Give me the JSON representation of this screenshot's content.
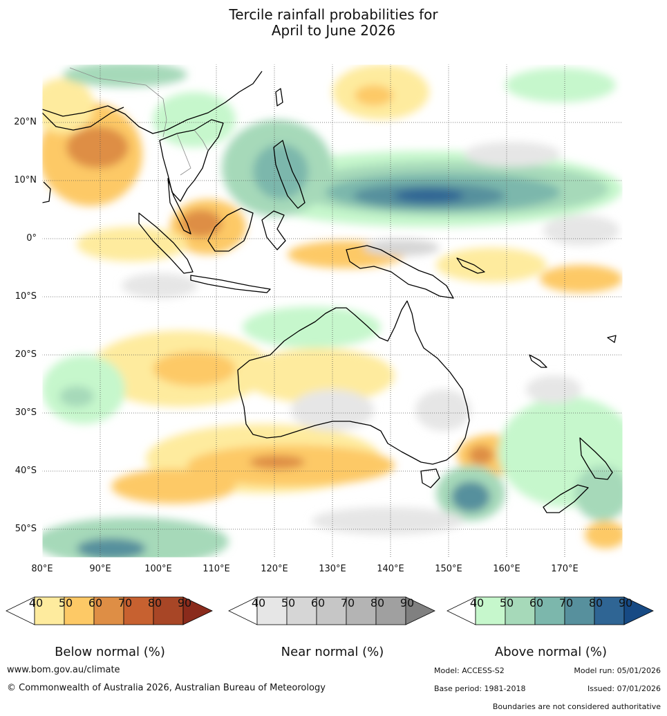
{
  "title": {
    "line1": "Tercile rainfall probabilities for",
    "line2": "April to June 2026"
  },
  "map": {
    "lon_labels": [
      "80°E",
      "90°E",
      "100°E",
      "110°E",
      "120°E",
      "130°E",
      "140°E",
      "150°E",
      "160°E",
      "170°E"
    ],
    "lat_labels": [
      "20°N",
      "10°N",
      "0°",
      "10°S",
      "20°S",
      "30°S",
      "40°S",
      "50°S"
    ]
  },
  "colorbars": [
    {
      "title": "Below normal (%)",
      "ticks": [
        "40",
        "50",
        "60",
        "70",
        "80",
        "90"
      ],
      "colors": [
        "#ffffff",
        "#feeb9e",
        "#fdc966",
        "#de8e45",
        "#c76130",
        "#a84626",
        "#8a2b1c"
      ]
    },
    {
      "title": "Near normal (%)",
      "ticks": [
        "40",
        "50",
        "60",
        "70",
        "80",
        "90"
      ],
      "colors": [
        "#ffffff",
        "#e6e6e6",
        "#d6d6d6",
        "#c6c6c6",
        "#b4b4b4",
        "#a0a0a0",
        "#808080"
      ]
    },
    {
      "title": "Above normal (%)",
      "ticks": [
        "40",
        "50",
        "60",
        "70",
        "80",
        "90"
      ],
      "colors": [
        "#ffffff",
        "#c6f7cc",
        "#a6d9b9",
        "#7cb7ac",
        "#57909d",
        "#2f6594",
        "#174a84"
      ]
    }
  ],
  "footer": {
    "website": "www.bom.gov.au/climate",
    "copyright": "© Commonwealth of Australia 2026, Australian Bureau of Meteorology",
    "model": "Model: ACCESS-S2",
    "model_run": "Model run: 05/01/2026",
    "base_period": "Base period: 1981-2018",
    "issued": "Issued: 07/01/2026",
    "boundaries": "Boundaries are not considered authoritative"
  }
}
